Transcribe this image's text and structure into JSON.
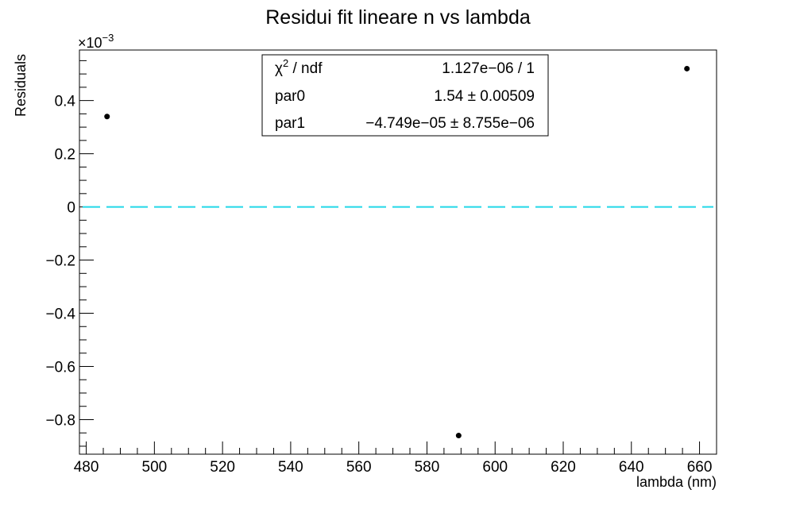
{
  "chart_data": {
    "type": "scatter",
    "title": "Residui fit lineare n vs lambda",
    "xlabel": "lambda (nm)",
    "ylabel": "Residuals",
    "xlim": [
      478,
      665
    ],
    "ylim": [
      -0.93,
      0.59
    ],
    "y_multiplier": "×10",
    "y_multiplier_exp": "−3",
    "x_ticks": [
      480,
      500,
      520,
      540,
      560,
      580,
      600,
      620,
      640,
      660
    ],
    "y_ticks": [
      0.4,
      0.2,
      0,
      -0.2,
      -0.4,
      -0.6,
      -0.8
    ],
    "x_tick_labels": [
      "480",
      "500",
      "520",
      "540",
      "560",
      "580",
      "600",
      "620",
      "640",
      "660"
    ],
    "y_tick_labels": [
      "0.4",
      "0.2",
      "0",
      "−0.2",
      "−0.4",
      "−0.6",
      "−0.8"
    ],
    "grid": false,
    "legend": "none",
    "series": [
      {
        "points": [
          {
            "x": 486.1,
            "y": 0.34
          },
          {
            "x": 589.3,
            "y": -0.86
          },
          {
            "x": 656.3,
            "y": 0.52
          }
        ],
        "color": "#000000"
      }
    ],
    "reference_line": {
      "y": 0,
      "style": "dashed",
      "color": "#22d8e8"
    },
    "stats_box": {
      "position": "top-center",
      "rows": [
        {
          "label_base": "χ",
          "label_sup": "2",
          "label_rest": " / ndf",
          "value": "1.127e−06 / 1"
        },
        {
          "label_base": "par0",
          "label_sup": "",
          "label_rest": "",
          "value": "1.54 ± 0.00509"
        },
        {
          "label_base": "par1",
          "label_sup": "",
          "label_rest": "",
          "value": "−4.749e−05 ± 8.755e−06"
        }
      ]
    }
  }
}
